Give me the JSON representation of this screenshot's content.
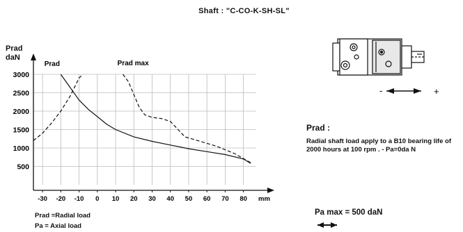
{
  "page": {
    "title": "Shaft : \"C-CO-K-SH-SL\"",
    "prad_heading": "Prad :",
    "description": "Radial shaft load apply to a B10 bearing life of 2000 hours at 100 rpm . - Pa=0da N",
    "pa_max": "Pa max = 500 daN",
    "legend_line1": "Prad =Radial load",
    "legend_line2": "Pa   = Axial load",
    "ylabel_line1": "Prad",
    "ylabel_line2": "daN"
  },
  "chart_data": {
    "type": "line",
    "xlabel": "mm",
    "ylabel": "Prad daN",
    "xlim": [
      -35,
      87
    ],
    "ylim": [
      0,
      3000
    ],
    "x_ticks": [
      -30,
      -20,
      -10,
      0,
      10,
      20,
      30,
      40,
      50,
      60,
      70,
      80
    ],
    "y_ticks": [
      500,
      1000,
      1500,
      2000,
      2500,
      3000
    ],
    "grid": true,
    "series": [
      {
        "name": "Prad",
        "style": "solid",
        "x": [
          -20,
          -15,
          -10,
          -5,
          0,
          5,
          10,
          20,
          30,
          40,
          50,
          60,
          70,
          80,
          84
        ],
        "y": [
          3000,
          2650,
          2300,
          2050,
          1850,
          1650,
          1500,
          1300,
          1180,
          1080,
          980,
          900,
          820,
          700,
          580
        ]
      },
      {
        "name": "Prad",
        "style": "dashed",
        "x": [
          -35,
          -30,
          -25,
          -20,
          -15,
          -10,
          -8
        ],
        "y": [
          1200,
          1400,
          1680,
          2000,
          2400,
          2900,
          3000
        ]
      },
      {
        "name": "Prad max",
        "style": "dashed",
        "x": [
          14,
          17,
          20,
          23,
          26,
          30,
          35,
          40,
          48,
          55,
          65,
          75,
          84
        ],
        "y": [
          3000,
          2800,
          2450,
          2100,
          1900,
          1830,
          1800,
          1720,
          1300,
          1200,
          1050,
          850,
          600
        ]
      }
    ],
    "annotations": [
      "Prad",
      "Prad max"
    ]
  }
}
